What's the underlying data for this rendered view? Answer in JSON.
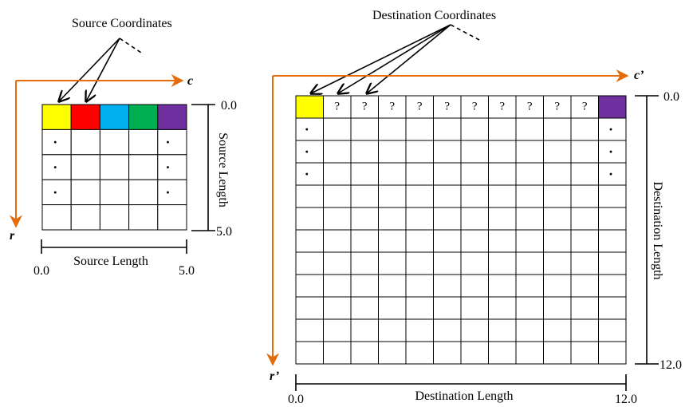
{
  "source": {
    "title": "Source Coordinates",
    "width_label": "Source Length",
    "height_label": "Source Length",
    "col_axis": "c",
    "row_axis": "r",
    "h_start": "0.0",
    "h_end": "5.0",
    "v_start": "0.0",
    "v_end": "5.0",
    "cols": 5,
    "rows": 5,
    "top_row_colors": [
      "#ffff00",
      "#ff0000",
      "#00b0f0",
      "#00b050",
      "#7030a0"
    ],
    "dot_glyph": "."
  },
  "destination": {
    "title": "Destination Coordinates",
    "width_label": "Destination Length",
    "height_label": "Destination Length",
    "col_axis": "c’",
    "row_axis": "r’",
    "h_start": "0.0",
    "h_end": "12.0",
    "v_start": "0.0",
    "v_end": "12.0",
    "cols": 12,
    "rows": 12,
    "first_cell_color": "#ffff00",
    "last_cell_color": "#7030a0",
    "unknown_glyph": "?",
    "dot_glyph": "."
  },
  "colors": {
    "axis": "#e46c0a",
    "grid": "#000000"
  }
}
